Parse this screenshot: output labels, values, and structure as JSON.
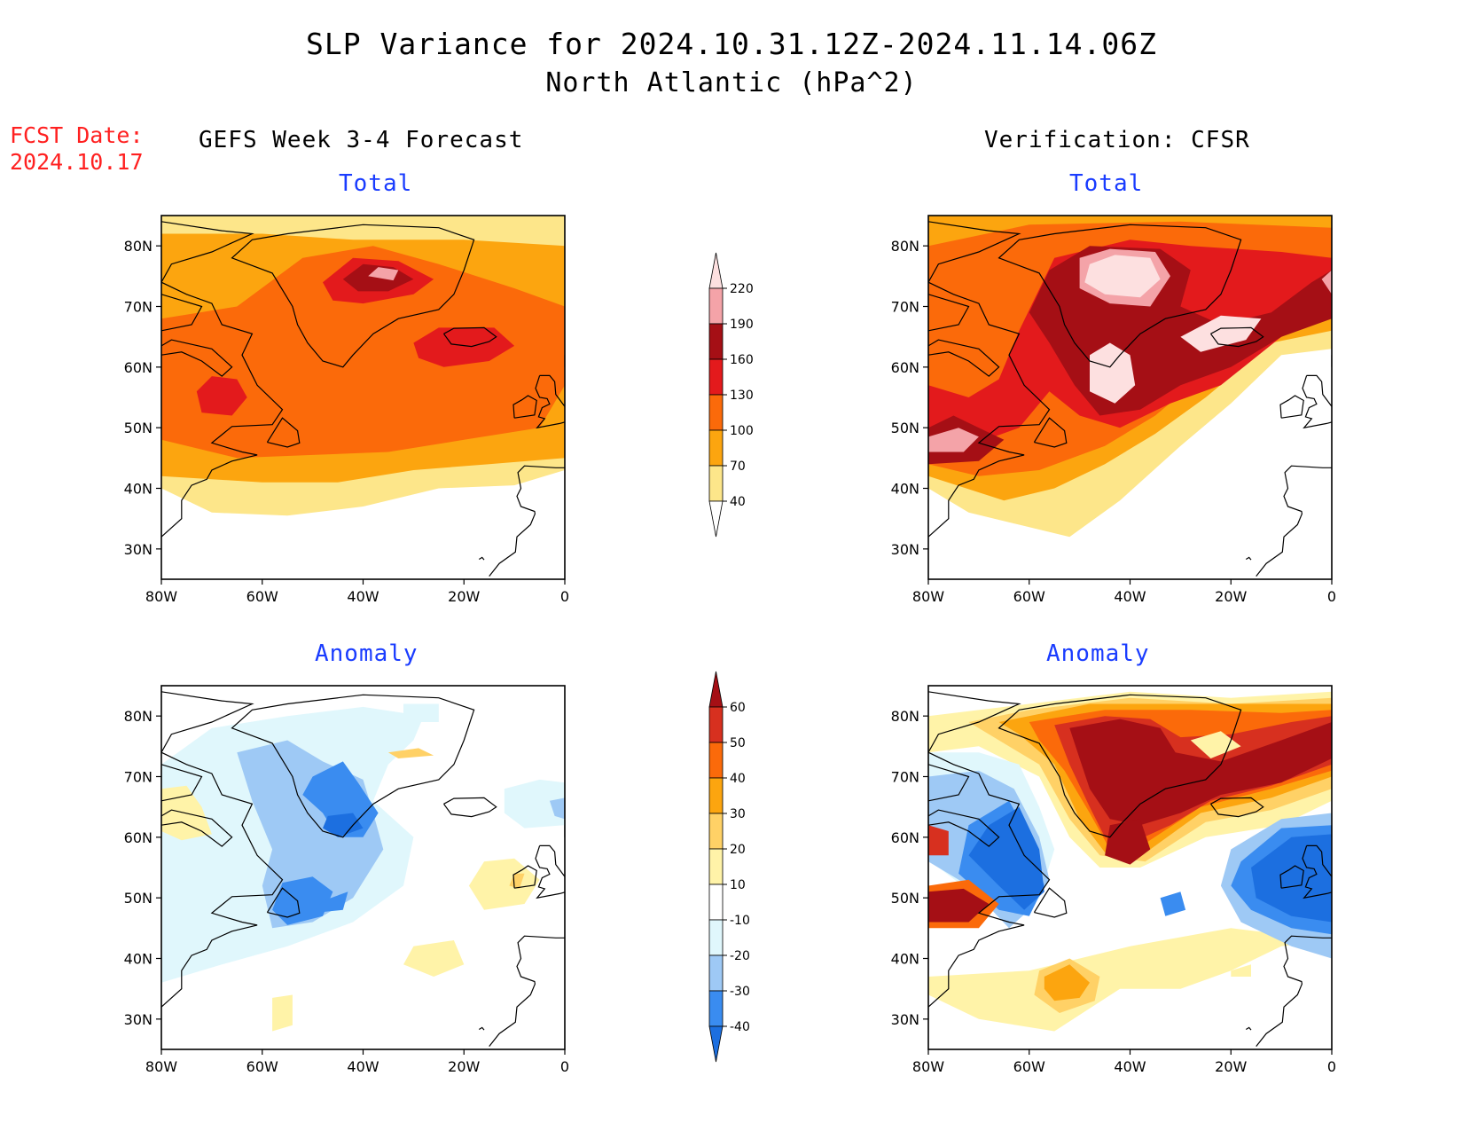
{
  "header": {
    "title": "SLP Variance for 2024.10.31.12Z-2024.11.14.06Z",
    "subtitle": "North Atlantic (hPa^2)"
  },
  "forecast_date": {
    "label": "FCST Date:",
    "value": "2024.10.17"
  },
  "columns": {
    "left": "GEFS Week 3-4 Forecast",
    "right": "Verification: CFSR"
  },
  "panel_titles": {
    "top_left": "Total",
    "top_right": "Total",
    "bottom_left": "Anomaly",
    "bottom_right": "Anomaly"
  },
  "axes": {
    "lat_labels": [
      "80N",
      "70N",
      "60N",
      "50N",
      "40N",
      "30N"
    ],
    "lon_labels": [
      "80W",
      "60W",
      "40W",
      "20W",
      "0"
    ]
  },
  "colorbar_total": {
    "levels": [
      "40",
      "70",
      "100",
      "130",
      "160",
      "190",
      "220"
    ],
    "colors": [
      "#fde68a",
      "#fca50f",
      "#fb6a0a",
      "#e31a1c",
      "#a50f15",
      "#f4a3a8",
      "#fde0e0"
    ]
  },
  "colorbar_anomaly": {
    "levels": [
      "-40",
      "-30",
      "-20",
      "-10",
      "10",
      "20",
      "30",
      "40",
      "50",
      "60"
    ],
    "colors": [
      "#1c6fe0",
      "#3a8cf0",
      "#9ec9f5",
      "#e0f7fc",
      "#ffffff",
      "#fff3a8",
      "#ffd166",
      "#fca50f",
      "#fb6a0a",
      "#d7301f",
      "#a50f15"
    ]
  }
}
